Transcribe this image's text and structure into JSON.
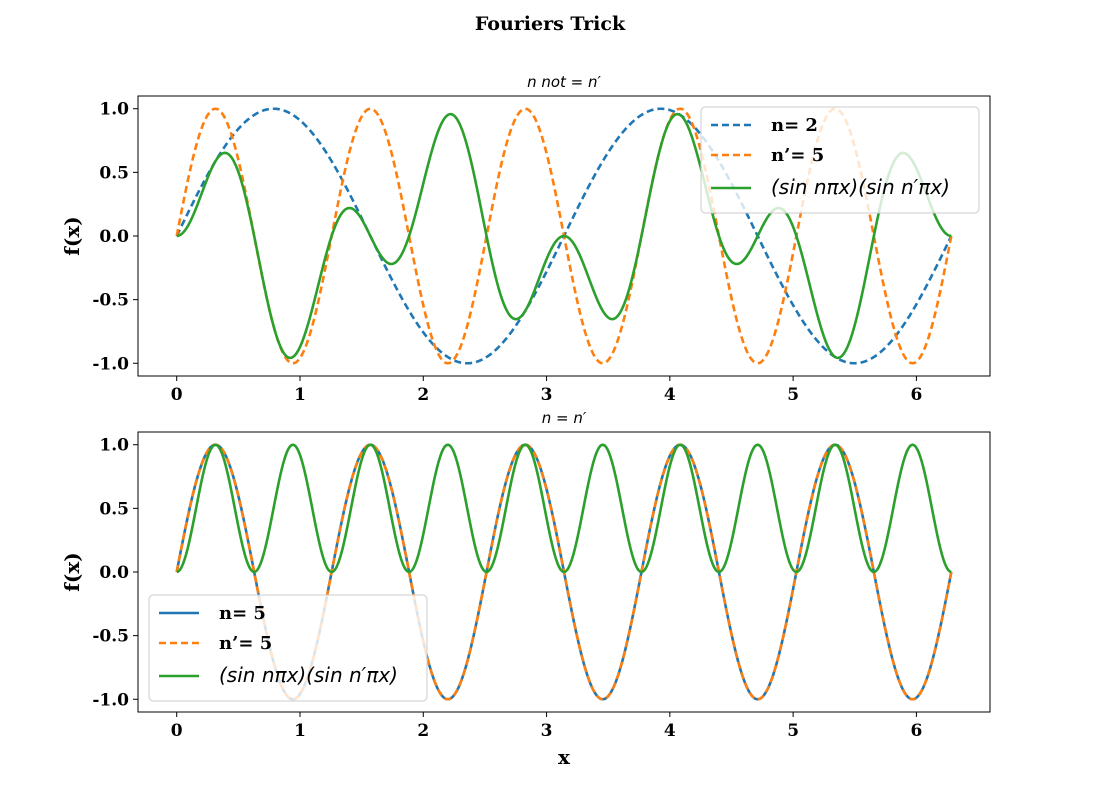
{
  "figure": {
    "suptitle": "Fouriers Trick"
  },
  "chart_data": [
    {
      "type": "line",
      "title": "n  not  = n′",
      "xlabel": "",
      "ylabel": "f(x)",
      "xlim": [
        -0.314,
        6.597
      ],
      "ylim": [
        -1.1,
        1.1
      ],
      "xticks": [
        0,
        1,
        2,
        3,
        4,
        5,
        6
      ],
      "xtick_labels": [
        "0",
        "1",
        "2",
        "3",
        "4",
        "5",
        "6"
      ],
      "yticks": [
        1.0,
        0.5,
        0.0,
        -0.5,
        -1.0
      ],
      "ytick_labels": [
        "1.0",
        "0.5",
        "0.0",
        "-0.5",
        "-1.0"
      ],
      "x_range": [
        0,
        6.2832
      ],
      "grid": false,
      "legend_position": "upper right",
      "series": [
        {
          "name": "n= 2",
          "function": "sin(2x)",
          "color": "#1f77b4",
          "style": "dashed"
        },
        {
          "name": "n’= 5",
          "function": "sin(5x)",
          "color": "#ff7f0e",
          "style": "dashed"
        },
        {
          "name": "(sin nπx)(sin n′πx)",
          "function": "sin(2x)·sin(5x)",
          "color": "#2ca02c",
          "style": "solid"
        }
      ]
    },
    {
      "type": "line",
      "title": "n = n′",
      "xlabel": "x",
      "ylabel": "f(x)",
      "xlim": [
        -0.314,
        6.597
      ],
      "ylim": [
        -1.1,
        1.1
      ],
      "xticks": [
        0,
        1,
        2,
        3,
        4,
        5,
        6
      ],
      "xtick_labels": [
        "0",
        "1",
        "2",
        "3",
        "4",
        "5",
        "6"
      ],
      "yticks": [
        1.0,
        0.5,
        0.0,
        -0.5,
        -1.0
      ],
      "ytick_labels": [
        "1.0",
        "0.5",
        "0.0",
        "-0.5",
        "-1.0"
      ],
      "x_range": [
        0,
        6.2832
      ],
      "grid": false,
      "legend_position": "lower left",
      "series": [
        {
          "name": "n= 5",
          "function": "sin(5x)",
          "color": "#1f77b4",
          "style": "solid"
        },
        {
          "name": "n’= 5",
          "function": "sin(5x)",
          "color": "#ff7f0e",
          "style": "dashed"
        },
        {
          "name": "(sin nπx)(sin n′πx)",
          "function": "sin(5x)·sin(5x)",
          "color": "#2ca02c",
          "style": "solid"
        }
      ]
    }
  ]
}
